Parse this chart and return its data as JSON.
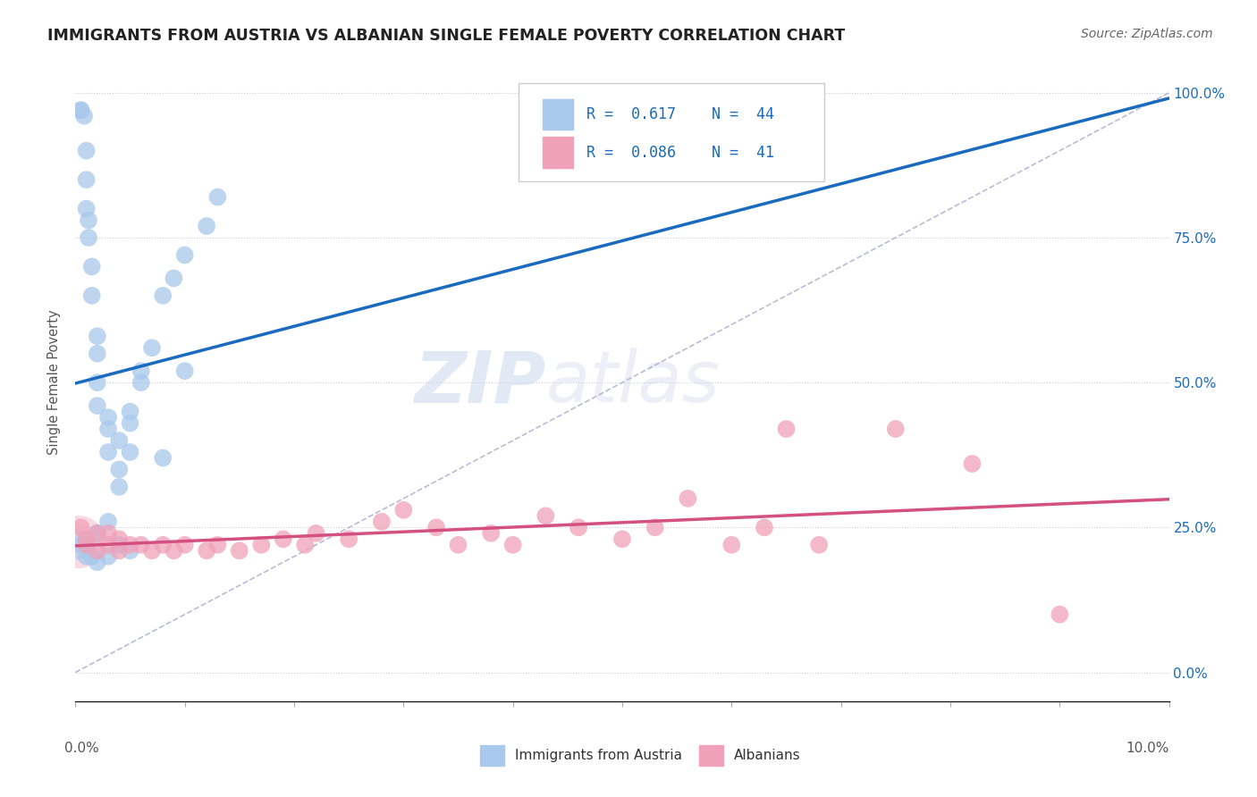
{
  "title": "IMMIGRANTS FROM AUSTRIA VS ALBANIAN SINGLE FEMALE POVERTY CORRELATION CHART",
  "source": "Source: ZipAtlas.com",
  "ylabel": "Single Female Poverty",
  "legend_label1": "Immigrants from Austria",
  "legend_label2": "Albanians",
  "r1": 0.617,
  "n1": 44,
  "r2": 0.086,
  "n2": 41,
  "color1": "#A8C8EC",
  "color2": "#F0A0B8",
  "line1_color": "#1A6BBF",
  "line2_color": "#D45080",
  "diagonal_color": "#AAAACC",
  "watermark_zip": "ZIP",
  "watermark_atlas": "atlas",
  "xlim": [
    0.0,
    0.1
  ],
  "ylim": [
    -0.05,
    1.05
  ],
  "austria_x": [
    0.001,
    0.001,
    0.001,
    0.002,
    0.002,
    0.003,
    0.003,
    0.003,
    0.003,
    0.004,
    0.004,
    0.004,
    0.005,
    0.005,
    0.005,
    0.006,
    0.006,
    0.007,
    0.007,
    0.008,
    0.009,
    0.01,
    0.011,
    0.012,
    0.013,
    0.014,
    0.015,
    0.001,
    0.002,
    0.002,
    0.003,
    0.004,
    0.005,
    0.001,
    0.002,
    0.002,
    0.003,
    0.003,
    0.004,
    0.004,
    0.005,
    0.006,
    0.008,
    0.01
  ],
  "austria_y": [
    0.22,
    0.25,
    0.97,
    0.2,
    0.23,
    0.2,
    0.22,
    0.37,
    0.44,
    0.32,
    0.4,
    0.46,
    0.38,
    0.42,
    0.47,
    0.5,
    0.55,
    0.56,
    0.62,
    0.67,
    0.7,
    0.71,
    0.74,
    0.77,
    0.8,
    0.83,
    0.85,
    0.18,
    0.19,
    0.24,
    0.26,
    0.22,
    0.21,
    0.97,
    0.96,
    0.97,
    0.2,
    0.24,
    0.35,
    0.43,
    0.45,
    0.52,
    0.66,
    0.52
  ],
  "albanian_x": [
    0.001,
    0.001,
    0.002,
    0.002,
    0.003,
    0.003,
    0.004,
    0.004,
    0.005,
    0.005,
    0.006,
    0.007,
    0.008,
    0.009,
    0.01,
    0.012,
    0.013,
    0.015,
    0.017,
    0.019,
    0.021,
    0.023,
    0.025,
    0.028,
    0.03,
    0.033,
    0.035,
    0.038,
    0.04,
    0.042,
    0.045,
    0.048,
    0.05,
    0.053,
    0.055,
    0.058,
    0.06,
    0.063,
    0.065,
    0.08,
    0.09
  ],
  "albanian_y": [
    0.22,
    0.24,
    0.21,
    0.23,
    0.2,
    0.22,
    0.21,
    0.23,
    0.22,
    0.23,
    0.22,
    0.21,
    0.22,
    0.23,
    0.22,
    0.21,
    0.23,
    0.22,
    0.21,
    0.23,
    0.22,
    0.24,
    0.23,
    0.26,
    0.28,
    0.25,
    0.27,
    0.24,
    0.22,
    0.28,
    0.25,
    0.3,
    0.23,
    0.25,
    0.22,
    0.3,
    0.22,
    0.24,
    0.42,
    0.42,
    0.1
  ]
}
